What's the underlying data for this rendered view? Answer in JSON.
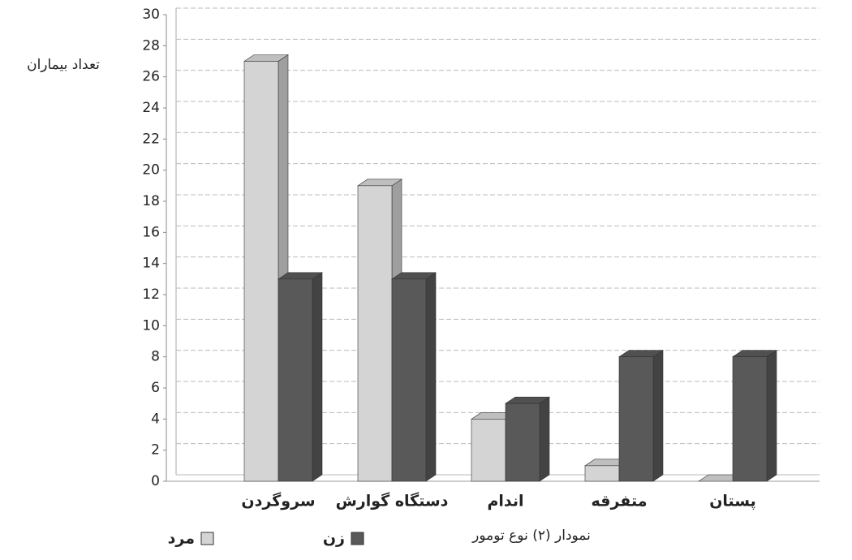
{
  "chart_data": {
    "type": "bar3d",
    "y_label": "تعداد بیماران",
    "x_label": "نمودار (۲) نوع تومور",
    "categories": [
      "سروگردن",
      "دستگاه گوارش",
      "اندام",
      "متفرقه",
      "پستان"
    ],
    "series": [
      {
        "name": "مرد",
        "color": "#d4d4d4",
        "values": [
          27,
          19,
          4,
          1,
          0
        ]
      },
      {
        "name": "زن",
        "color": "#595959",
        "values": [
          13,
          13,
          5,
          8,
          8
        ]
      }
    ],
    "ylim": [
      0,
      30
    ],
    "yticks": [
      0,
      2,
      4,
      6,
      8,
      10,
      12,
      14,
      16,
      18,
      20,
      22,
      24,
      26,
      28,
      30
    ],
    "grid": true
  }
}
